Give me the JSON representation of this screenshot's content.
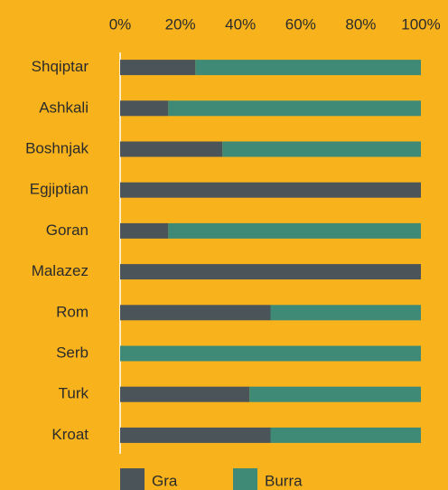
{
  "chart_data": {
    "type": "bar",
    "stacked": true,
    "orientation": "horizontal",
    "categories": [
      "Shqiptar",
      "Ashkali",
      "Boshnjak",
      "Egjiptian",
      "Goran",
      "Malazez",
      "Rom",
      "Serb",
      "Turk",
      "Kroat"
    ],
    "series": [
      {
        "name": "Gra",
        "color": "#4a5459",
        "values": [
          25,
          16,
          34,
          100,
          16,
          100,
          50,
          0,
          43,
          50
        ]
      },
      {
        "name": "Burra",
        "color": "#3e8a76",
        "values": [
          75,
          84,
          66,
          0,
          84,
          0,
          50,
          100,
          57,
          50
        ]
      }
    ],
    "xlim": [
      0,
      100
    ],
    "xticks": [
      {
        "value": 0,
        "label": "0%"
      },
      {
        "value": 20,
        "label": "20%"
      },
      {
        "value": 40,
        "label": "40%"
      },
      {
        "value": 60,
        "label": "60%"
      },
      {
        "value": 80,
        "label": "80%"
      },
      {
        "value": 100,
        "label": "100%"
      }
    ],
    "legend": "bottom"
  }
}
